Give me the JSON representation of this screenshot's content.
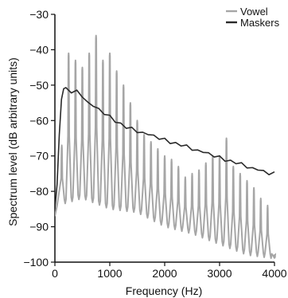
{
  "chart_data": {
    "type": "line",
    "xlabel": "Frequency (Hz)",
    "ylabel": "Spectrum level (dB arbitrary units)",
    "xlim": [
      0,
      4000
    ],
    "ylim": [
      -100,
      -30
    ],
    "xticks": [
      0,
      1000,
      2000,
      3000,
      4000
    ],
    "yticks": [
      -30,
      -40,
      -50,
      -60,
      -70,
      -80,
      -90,
      -100
    ],
    "xtick_labels": [
      "0",
      "1000",
      "2000",
      "3000",
      "4000"
    ],
    "ytick_labels": [
      "−30",
      "−40",
      "−50",
      "−60",
      "−70",
      "−80",
      "−90",
      "−100"
    ],
    "grid": false,
    "legend_position": "top-right",
    "series": [
      {
        "name": "Vowel",
        "color": "#a6a6a6",
        "style": "harmonic-spectrum",
        "harmonic_spacing_hz": 125,
        "harmonic_peaks": [
          [
            125,
            -67
          ],
          [
            250,
            -41
          ],
          [
            375,
            -43
          ],
          [
            500,
            -45
          ],
          [
            625,
            -41
          ],
          [
            750,
            -36
          ],
          [
            875,
            -43
          ],
          [
            1000,
            -41
          ],
          [
            1125,
            -46
          ],
          [
            1250,
            -50
          ],
          [
            1375,
            -55
          ],
          [
            1500,
            -60
          ],
          [
            1625,
            -64
          ],
          [
            1750,
            -66
          ],
          [
            1875,
            -68
          ],
          [
            2000,
            -70
          ],
          [
            2125,
            -71
          ],
          [
            2250,
            -73
          ],
          [
            2375,
            -76
          ],
          [
            2500,
            -75
          ],
          [
            2625,
            -74
          ],
          [
            2750,
            -72
          ],
          [
            2875,
            -70
          ],
          [
            3000,
            -70
          ],
          [
            3125,
            -65
          ],
          [
            3250,
            -73
          ],
          [
            3375,
            -75
          ],
          [
            3500,
            -77
          ],
          [
            3625,
            -79
          ],
          [
            3750,
            -82
          ],
          [
            3875,
            -84
          ],
          [
            4000,
            -98
          ]
        ],
        "trough_levels": [
          [
            60,
            -84
          ],
          [
            500,
            -82
          ],
          [
            1000,
            -85
          ],
          [
            1500,
            -86
          ],
          [
            2000,
            -90
          ],
          [
            2500,
            -92
          ],
          [
            3000,
            -95
          ],
          [
            3500,
            -98
          ],
          [
            4000,
            -99
          ]
        ]
      },
      {
        "name": "Maskers",
        "color": "#2a2a2a",
        "x": [
          0,
          40,
          80,
          120,
          160,
          200,
          300,
          400,
          500,
          600,
          700,
          800,
          900,
          1000,
          1100,
          1200,
          1300,
          1400,
          1500,
          1600,
          1700,
          1800,
          1900,
          2000,
          2100,
          2200,
          2300,
          2400,
          2500,
          2600,
          2700,
          2800,
          2900,
          3000,
          3100,
          3200,
          3300,
          3400,
          3500,
          3600,
          3700,
          3800,
          3900,
          4000
        ],
        "y": [
          -85,
          -78,
          -64,
          -54,
          -51,
          -51,
          -52,
          -52,
          -53,
          -55,
          -56,
          -57,
          -58,
          -59,
          -60,
          -61,
          -62,
          -62.5,
          -63,
          -63.5,
          -64,
          -64.5,
          -65,
          -65.5,
          -66,
          -66.5,
          -67,
          -67.5,
          -68,
          -68.5,
          -69,
          -69.5,
          -70,
          -70.5,
          -71,
          -71.5,
          -72,
          -72.5,
          -73,
          -73.5,
          -74,
          -74.5,
          -75,
          -75
        ]
      }
    ]
  }
}
